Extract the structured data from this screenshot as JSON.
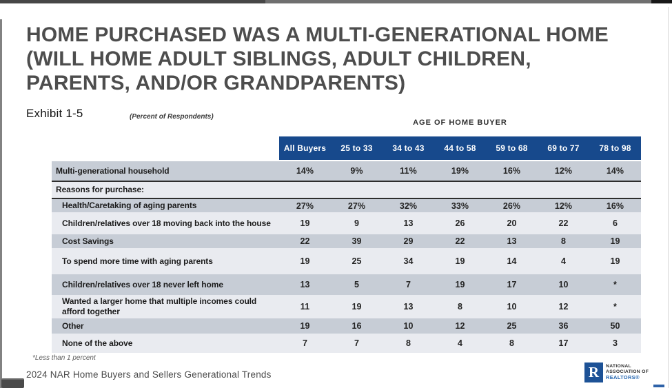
{
  "title_lines": [
    "HOME PURCHASED WAS A MULTI-GENERATIONAL HOME",
    "(WILL HOME ADULT SIBLINGS, ADULT CHILDREN,",
    "PARENTS, AND/OR GRANDPARENTS)"
  ],
  "exhibit": "Exhibit 1-5",
  "subtitle": "(Percent of Respondents)",
  "table": {
    "group_header": "AGE OF HOME BUYER",
    "columns": [
      "All Buyers",
      "25 to 33",
      "34 to 43",
      "44 to 58",
      "59 to 68",
      "69 to 77",
      "78 to 98"
    ],
    "rows": [
      {
        "label": "Multi-generational household",
        "values": [
          "14%",
          "9%",
          "11%",
          "19%",
          "16%",
          "12%",
          "14%"
        ]
      },
      {
        "label": "Reasons for purchase:",
        "values": [
          "",
          "",
          "",
          "",
          "",
          "",
          ""
        ]
      },
      {
        "label": "Health/Caretaking of aging parents",
        "values": [
          "27%",
          "27%",
          "32%",
          "33%",
          "26%",
          "12%",
          "16%"
        ]
      },
      {
        "label": "Children/relatives over 18 moving back into the house",
        "values": [
          "19",
          "9",
          "13",
          "26",
          "20",
          "22",
          "6"
        ]
      },
      {
        "label": "Cost Savings",
        "values": [
          "22",
          "39",
          "29",
          "22",
          "13",
          "8",
          "19"
        ]
      },
      {
        "label": "To spend more time with aging parents",
        "values": [
          "19",
          "25",
          "34",
          "19",
          "14",
          "4",
          "19"
        ]
      },
      {
        "label": "Children/relatives over 18 never left home",
        "values": [
          "13",
          "5",
          "7",
          "19",
          "17",
          "10",
          "*"
        ]
      },
      {
        "label": "Wanted a larger home that multiple incomes could afford together",
        "values": [
          "11",
          "19",
          "13",
          "8",
          "10",
          "12",
          "*"
        ]
      },
      {
        "label": "Other",
        "values": [
          "19",
          "16",
          "10",
          "12",
          "25",
          "36",
          "50"
        ]
      },
      {
        "label": "None of the above",
        "values": [
          "7",
          "7",
          "8",
          "4",
          "8",
          "17",
          "3"
        ]
      }
    ]
  },
  "footnote": "*Less than 1 percent",
  "source": "2024 NAR Home Buyers and Sellers Generational Trends",
  "logo": {
    "letter": "R",
    "line1": "NATIONAL",
    "line2": "ASSOCIATION OF",
    "line3": "REALTORS®"
  },
  "colors": {
    "header_bg": "#17498c",
    "row_dark": "#c7cdd6",
    "row_light": "#e9ebf0",
    "accent_blue": "#1d5296"
  }
}
